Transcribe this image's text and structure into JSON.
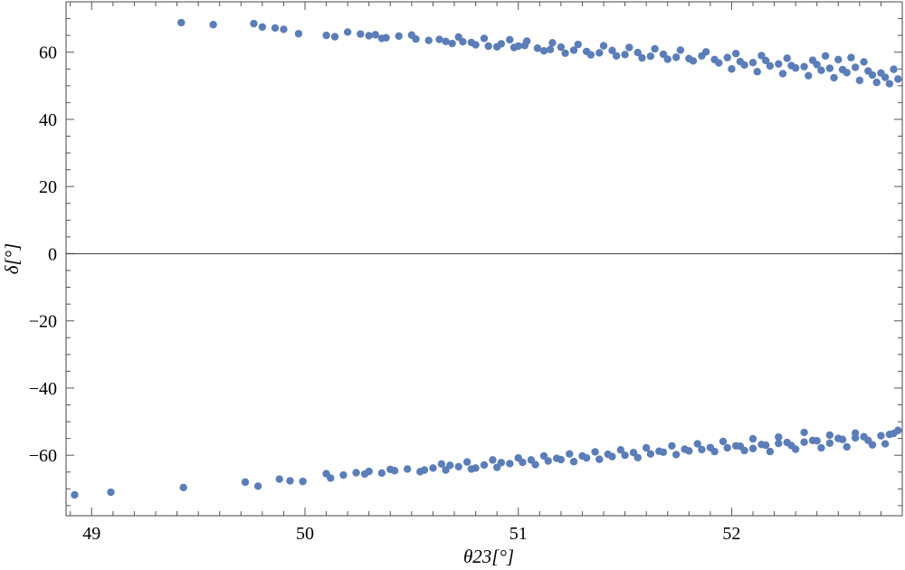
{
  "chart_data": {
    "type": "scatter",
    "xlabel": "θ23[°]",
    "ylabel": "δ[°]",
    "xlim": [
      48.88,
      52.8
    ],
    "ylim": [
      -78,
      75
    ],
    "x_ticks": [
      49,
      50,
      51,
      52
    ],
    "x_tick_labels": [
      "49",
      "50",
      "51",
      "52"
    ],
    "y_ticks": [
      -60,
      -40,
      -20,
      0,
      20,
      40,
      60
    ],
    "y_tick_labels": [
      "−60",
      "−40",
      "−20",
      "0",
      "20",
      "40",
      "60"
    ],
    "zero_line": true,
    "grid": false,
    "marker_color": "#5b7db8",
    "series": [
      {
        "x": [
          49.42,
          49.57,
          49.76,
          49.8,
          49.86,
          49.9,
          49.97,
          50.1,
          50.14,
          50.26,
          50.3,
          50.33,
          50.38,
          50.44,
          50.52,
          50.58,
          50.63,
          50.69,
          50.74,
          50.8,
          50.86,
          50.92,
          50.98,
          51.03,
          51.09,
          51.15,
          51.2,
          51.26,
          51.32,
          51.38,
          51.44,
          51.5,
          51.56,
          51.62,
          51.68,
          51.74,
          51.8,
          51.86,
          51.92,
          51.98,
          52.04,
          52.1,
          52.16,
          52.22,
          52.28,
          52.34,
          52.4,
          52.46,
          52.52,
          52.58,
          52.64,
          52.7,
          52.76,
          50.2,
          50.36,
          50.5,
          50.66,
          50.78,
          50.9,
          51.0,
          51.12,
          51.22,
          51.34,
          51.46,
          51.58,
          51.7,
          51.82,
          51.94,
          52.06,
          52.18,
          52.3,
          52.42,
          52.54,
          52.66,
          52.72,
          52.78,
          52.0,
          52.12,
          52.24,
          52.36,
          52.48,
          52.6,
          52.68,
          52.74,
          52.5,
          52.56,
          52.62,
          52.44,
          52.38,
          52.26,
          52.14,
          52.02,
          51.88,
          51.76,
          51.64,
          51.52,
          51.4,
          51.28,
          51.16,
          51.04,
          50.96,
          50.84,
          50.72,
          48.92,
          49.09,
          49.43,
          49.72,
          49.78,
          49.88,
          49.93,
          49.99,
          50.1,
          50.12,
          50.18,
          50.24,
          50.3,
          50.36,
          50.42,
          50.48,
          50.54,
          50.6,
          50.66,
          50.72,
          50.78,
          50.84,
          50.9,
          50.96,
          51.02,
          51.08,
          51.14,
          51.2,
          51.26,
          51.32,
          51.38,
          51.44,
          51.5,
          51.56,
          51.62,
          51.68,
          51.74,
          51.8,
          51.86,
          51.92,
          51.98,
          52.04,
          52.1,
          52.16,
          52.22,
          52.28,
          52.34,
          52.4,
          52.46,
          52.52,
          52.58,
          52.64,
          52.7,
          52.76,
          50.28,
          50.4,
          50.56,
          50.68,
          50.8,
          50.92,
          51.06,
          51.18,
          51.3,
          51.42,
          51.54,
          51.66,
          51.78,
          51.9,
          52.02,
          52.14,
          52.26,
          52.38,
          52.5,
          52.62,
          52.74,
          52.78,
          52.06,
          52.18,
          52.3,
          52.42,
          52.54,
          52.66,
          52.72,
          52.46,
          52.58,
          52.34,
          52.22,
          52.1,
          51.96,
          51.84,
          51.72,
          51.6,
          51.48,
          51.36,
          51.24,
          51.12,
          51.0,
          50.88,
          50.76,
          50.64
        ],
        "y": [
          68.8,
          68.2,
          68.5,
          67.5,
          67.2,
          66.8,
          65.5,
          65.0,
          64.6,
          65.4,
          64.9,
          65.2,
          64.3,
          64.8,
          63.9,
          63.5,
          63.8,
          62.6,
          63.1,
          62.2,
          61.8,
          62.5,
          61.4,
          62.0,
          61.2,
          60.8,
          61.5,
          60.6,
          60.2,
          59.8,
          60.5,
          59.3,
          59.9,
          58.8,
          59.4,
          58.5,
          58.1,
          58.9,
          57.8,
          58.4,
          57.2,
          56.9,
          57.5,
          56.5,
          56.0,
          55.7,
          56.3,
          55.2,
          54.8,
          55.5,
          54.4,
          53.8,
          54.9,
          66.0,
          64.1,
          65.1,
          63.2,
          62.9,
          61.6,
          61.8,
          60.4,
          59.7,
          59.2,
          58.9,
          58.3,
          57.9,
          57.4,
          56.8,
          56.2,
          55.9,
          55.3,
          54.6,
          53.9,
          53.2,
          52.5,
          52.0,
          55.0,
          54.2,
          53.6,
          53.0,
          52.4,
          51.6,
          51.0,
          50.6,
          57.8,
          58.4,
          57.1,
          58.9,
          57.6,
          58.2,
          59.0,
          59.6,
          60.1,
          60.6,
          61.0,
          61.4,
          61.9,
          62.3,
          62.8,
          63.3,
          63.7,
          64.1,
          64.5,
          -71.8,
          -71.0,
          -69.6,
          -68.0,
          -69.2,
          -67.1,
          -67.6,
          -67.8,
          -65.5,
          -66.8,
          -65.9,
          -65.2,
          -64.8,
          -65.3,
          -64.6,
          -64.1,
          -64.9,
          -63.8,
          -64.4,
          -63.4,
          -64.1,
          -62.9,
          -63.6,
          -62.5,
          -62.1,
          -62.8,
          -61.7,
          -61.3,
          -61.9,
          -60.8,
          -61.2,
          -60.4,
          -60.0,
          -60.7,
          -59.6,
          -59.1,
          -59.8,
          -58.7,
          -58.3,
          -58.9,
          -57.8,
          -57.3,
          -58.0,
          -57.0,
          -56.5,
          -57.1,
          -56.1,
          -55.7,
          -56.4,
          -55.3,
          -54.8,
          -55.6,
          -54.2,
          -53.5,
          -65.6,
          -64.2,
          -64.4,
          -63.0,
          -63.8,
          -62.2,
          -61.4,
          -60.9,
          -60.2,
          -59.7,
          -59.2,
          -58.8,
          -58.2,
          -57.7,
          -57.2,
          -56.8,
          -56.2,
          -55.6,
          -55.0,
          -54.5,
          -53.8,
          -52.6,
          -58.6,
          -58.9,
          -58.2,
          -57.8,
          -57.5,
          -56.9,
          -56.6,
          -54.0,
          -53.4,
          -53.2,
          -54.6,
          -55.1,
          -55.9,
          -56.6,
          -57.2,
          -57.8,
          -58.4,
          -59.0,
          -59.6,
          -60.2,
          -60.8,
          -61.4,
          -62.0,
          -62.6
        ]
      }
    ]
  }
}
